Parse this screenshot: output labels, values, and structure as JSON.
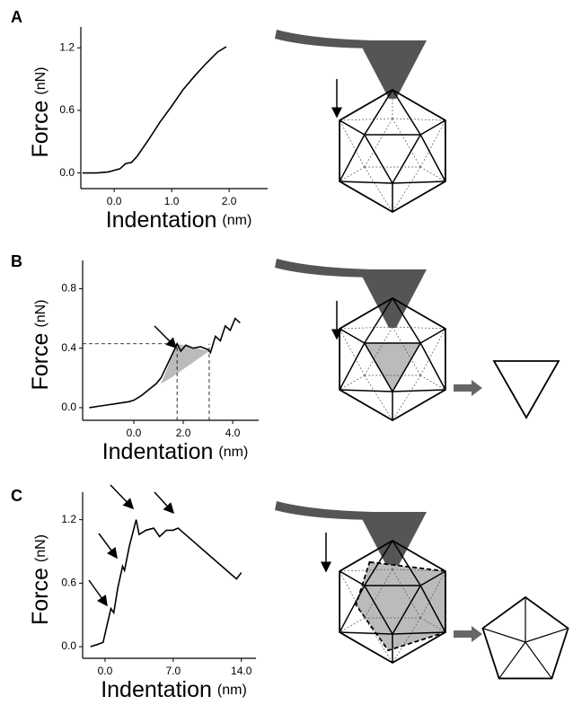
{
  "panels": [
    "A",
    "B",
    "C"
  ],
  "chart_data": [
    {
      "type": "line",
      "color": "#000000",
      "xlabel": "Indentation",
      "xlabel_unit": "(nm)",
      "ylabel": "Force",
      "ylabel_unit": "(nN)",
      "xlim": [
        -0.58,
        2.67
      ],
      "ylim": [
        -0.15,
        1.4
      ],
      "xticks": [
        {
          "value": 0,
          "label": "0.0"
        },
        {
          "value": 1,
          "label": "1.0"
        },
        {
          "value": 2,
          "label": "2.0"
        }
      ],
      "yticks": [
        {
          "value": 0,
          "label": "0.0"
        },
        0.6,
        1.2
      ],
      "x": [
        -0.55,
        -0.3,
        -0.1,
        0.1,
        0.2,
        0.3,
        0.4,
        0.6,
        0.8,
        1.0,
        1.2,
        1.4,
        1.6,
        1.8,
        1.95
      ],
      "values": [
        0,
        0,
        0.01,
        0.04,
        0.09,
        0.1,
        0.16,
        0.32,
        0.49,
        0.64,
        0.8,
        0.93,
        1.05,
        1.16,
        1.21
      ]
    },
    {
      "type": "line",
      "color": "#000000",
      "xlabel": "Indentation",
      "xlabel_unit": "(nm)",
      "ylabel": "Force",
      "ylabel_unit": "(nN)",
      "xlim": [
        -2.07,
        5.05
      ],
      "ylim": [
        -0.085,
        0.99
      ],
      "xticks": [
        {
          "value": 0,
          "label": "0.0"
        },
        {
          "value": 2,
          "label": "2.0"
        },
        {
          "value": 4,
          "label": "4.0"
        }
      ],
      "yticks": [
        {
          "value": 0,
          "label": "0.0"
        },
        0.4,
        0.8
      ],
      "x": [
        -1.8,
        -1.4,
        -1.0,
        -0.6,
        -0.2,
        0.0,
        0.3,
        0.6,
        0.9,
        1.1,
        1.3,
        1.5,
        1.7,
        1.75,
        1.9,
        2.1,
        2.4,
        2.7,
        3.0,
        3.1,
        3.3,
        3.5,
        3.7,
        3.9,
        4.1,
        4.3
      ],
      "values": [
        0,
        0.01,
        0.02,
        0.03,
        0.04,
        0.05,
        0.08,
        0.12,
        0.16,
        0.2,
        0.27,
        0.34,
        0.41,
        0.43,
        0.38,
        0.42,
        0.4,
        0.41,
        0.39,
        0.37,
        0.48,
        0.45,
        0.55,
        0.52,
        0.6,
        0.57
      ],
      "guides": {
        "x": [
          1.75,
          3.05
        ],
        "y": 0.43
      },
      "shaded": {
        "x": [
          1.1,
          1.75,
          3.05,
          1.5
        ],
        "y": [
          0.16,
          0.43,
          0.38,
          0.2
        ]
      }
    },
    {
      "type": "line",
      "color": "#000000",
      "xlabel": "Indentation",
      "xlabel_unit": "(nm)",
      "ylabel": "Force",
      "ylabel_unit": "(nN)",
      "xlim": [
        -2.3,
        15.5
      ],
      "ylim": [
        -0.11,
        1.46
      ],
      "xticks": [
        {
          "value": 0,
          "label": "0.0"
        },
        {
          "value": 7,
          "label": "7.0"
        },
        {
          "value": 14,
          "label": "14.0"
        }
      ],
      "yticks": [
        {
          "value": 0,
          "label": "0.0"
        },
        0.6,
        1.2
      ],
      "x": [
        -1.5,
        -0.8,
        -0.2,
        0.2,
        0.6,
        0.9,
        1.3,
        1.8,
        2.0,
        2.5,
        3.2,
        3.5,
        4.2,
        5.0,
        5.6,
        6.3,
        7.0,
        7.5,
        9.0,
        10.5,
        12.0,
        13.5,
        14.0
      ],
      "values": [
        0,
        0.02,
        0.04,
        0.2,
        0.36,
        0.32,
        0.55,
        0.76,
        0.72,
        0.95,
        1.2,
        1.06,
        1.1,
        1.12,
        1.04,
        1.1,
        1.1,
        1.12,
        1.0,
        0.88,
        0.76,
        0.64,
        0.7
      ]
    }
  ]
}
